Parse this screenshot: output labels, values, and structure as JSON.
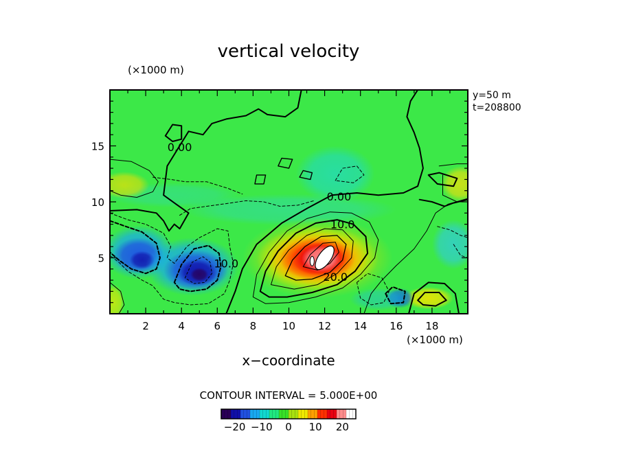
{
  "chart_data": {
    "type": "heatmap",
    "title": "vertical velocity",
    "xlabel": "x−coordinate",
    "x_unit_label": "(×1000 m)",
    "y_unit_label": "(×1000 m)",
    "xlim": [
      0,
      20
    ],
    "ylim": [
      0,
      20
    ],
    "x_ticks": [
      2,
      4,
      6,
      8,
      10,
      12,
      14,
      16,
      18
    ],
    "y_ticks": [
      5,
      10,
      15
    ],
    "info_lines": [
      "y=50  m",
      "t=208800"
    ],
    "contour_interval_text": "CONTOUR INTERVAL = 5.000E+00",
    "contour_labels": [
      {
        "text": "0.00",
        "x": 3.9,
        "y": 14.9
      },
      {
        "text": "0.00",
        "x": 12.8,
        "y": 10.5
      },
      {
        "text": "10.0",
        "x": 13.0,
        "y": 8.0
      },
      {
        "text": "10.0",
        "x": 6.5,
        "y": 4.5
      },
      {
        "text": "20.0",
        "x": 12.6,
        "y": 3.3
      }
    ],
    "colorbar": {
      "ticks": [
        -20,
        -10,
        0,
        10,
        20
      ],
      "colors": [
        "#2a0055",
        "#1010a8",
        "#2050e0",
        "#18a8f0",
        "#10d8d0",
        "#20e880",
        "#38e028",
        "#a8e010",
        "#f0e800",
        "#ffa000",
        "#ff3000",
        "#e80010",
        "#ff8c8c",
        "#ffffff"
      ]
    },
    "features": [
      {
        "kind": "updraft",
        "x": 11.6,
        "y": 4.8,
        "max": 25
      },
      {
        "kind": "downdraft",
        "x": 4.9,
        "y": 3.7,
        "min": -25
      },
      {
        "kind": "downdraft",
        "x": 1.5,
        "y": 5.5,
        "min": -15
      }
    ]
  }
}
